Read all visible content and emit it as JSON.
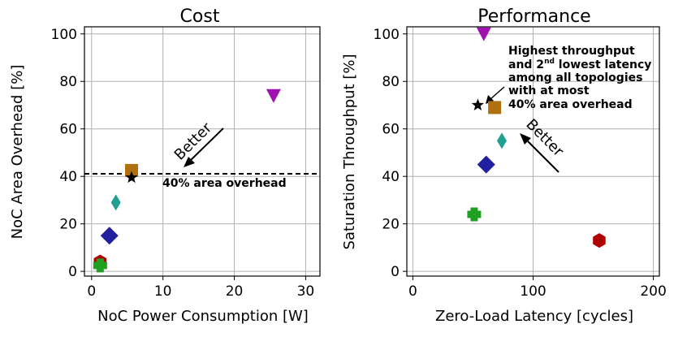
{
  "chart_data": [
    {
      "type": "scatter",
      "title": "Cost",
      "xlabel": "NoC Power Consumption [W]",
      "ylabel": "NoC Area Overhead [%]",
      "xlim": [
        -1,
        32
      ],
      "ylim": [
        -2,
        103
      ],
      "xticks": [
        0,
        10,
        20,
        30
      ],
      "yticks": [
        0,
        20,
        40,
        60,
        80,
        100
      ],
      "grid": true,
      "points": [
        {
          "x": 1.2,
          "y": 4,
          "marker": "hexagon",
          "color": "#b00000"
        },
        {
          "x": 1.2,
          "y": 2.5,
          "marker": "plus",
          "color": "#20a020"
        },
        {
          "x": 2.5,
          "y": 15,
          "marker": "diamond",
          "color": "#2020a0"
        },
        {
          "x": 3.4,
          "y": 29,
          "marker": "thin-diamond",
          "color": "#20a090"
        },
        {
          "x": 5.6,
          "y": 42.5,
          "marker": "square",
          "color": "#b07010"
        },
        {
          "x": 5.6,
          "y": 39.5,
          "marker": "star",
          "color": "#000000"
        },
        {
          "x": 25.5,
          "y": 74,
          "marker": "triangle-down",
          "color": "#a010b0"
        }
      ],
      "hline": {
        "y": 40,
        "style": "dashed",
        "label": "40% area overhead"
      },
      "arrow": {
        "from": [
          19,
          60
        ],
        "to": [
          13,
          42.5
        ],
        "label": "Better"
      }
    },
    {
      "type": "scatter",
      "title": "Performance",
      "xlabel": "Zero-Load Latency [cycles]",
      "ylabel": "Saturation Throughput [%]",
      "xlim": [
        -5,
        205
      ],
      "ylim": [
        -2,
        103
      ],
      "xticks": [
        0,
        100,
        200
      ],
      "yticks": [
        0,
        20,
        40,
        60,
        80,
        100
      ],
      "grid": true,
      "points": [
        {
          "x": 59,
          "y": 100,
          "marker": "triangle-down",
          "color": "#a010b0"
        },
        {
          "x": 68,
          "y": 69,
          "marker": "square",
          "color": "#b07010"
        },
        {
          "x": 54,
          "y": 70,
          "marker": "star",
          "color": "#000000"
        },
        {
          "x": 74,
          "y": 55,
          "marker": "thin-diamond",
          "color": "#20a090"
        },
        {
          "x": 61,
          "y": 45,
          "marker": "diamond",
          "color": "#2020a0"
        },
        {
          "x": 51,
          "y": 24,
          "marker": "plus",
          "color": "#20a020"
        },
        {
          "x": 155,
          "y": 13,
          "marker": "hexagon",
          "color": "#b00000"
        }
      ],
      "arrow": {
        "from": [
          120,
          41
        ],
        "to": [
          88,
          58
        ],
        "label": "Better"
      },
      "annotation": {
        "lines": [
          "Highest throughput",
          "and 2",
          "nd",
          " lowest latency",
          "among all topologies",
          "with at most",
          "40% area overhead"
        ],
        "arrow_to": [
          58,
          73
        ]
      }
    }
  ]
}
